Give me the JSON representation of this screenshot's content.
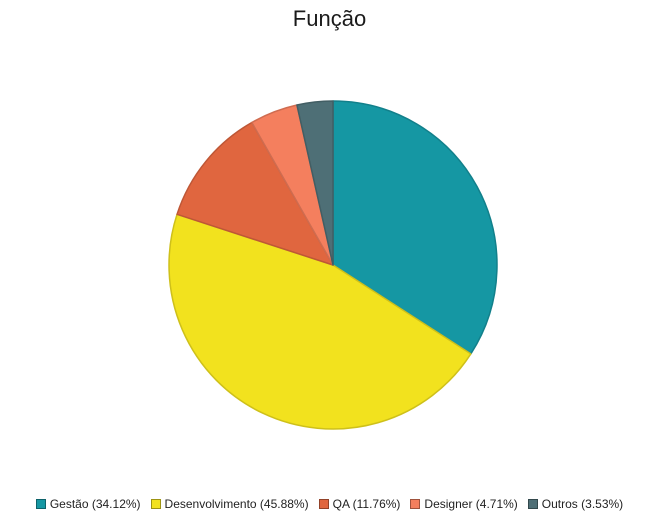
{
  "chart_data": {
    "type": "pie",
    "title": "Função",
    "legend_position": "bottom",
    "slices": [
      {
        "label": "Gestão",
        "value": 34.12,
        "legend": "Gestão (34.12%)",
        "color": "#1597a3"
      },
      {
        "label": "Desenvolvimento",
        "value": 45.88,
        "legend": "Desenvolvimento (45.88%)",
        "color": "#f2e21e"
      },
      {
        "label": "QA",
        "value": 11.76,
        "legend": "QA (11.76%)",
        "color": "#e0663f"
      },
      {
        "label": "Designer",
        "value": 4.71,
        "legend": "Designer (4.71%)",
        "color": "#f47f5e"
      },
      {
        "label": "Outros",
        "value": 3.53,
        "legend": "Outros (3.53%)",
        "color": "#4e6f76"
      }
    ]
  }
}
